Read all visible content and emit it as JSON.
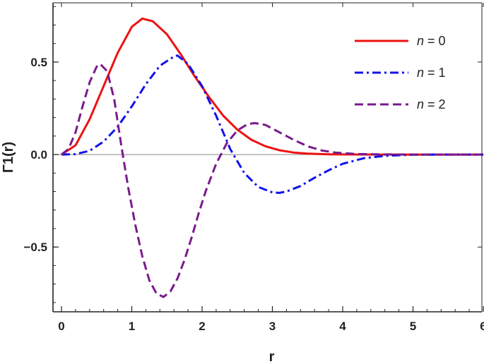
{
  "chart_data": {
    "type": "line",
    "title": "",
    "xlabel": "r",
    "ylabel": "Γ1(r)",
    "xlim": [
      0,
      6
    ],
    "ylim": [
      -0.85,
      0.82
    ],
    "xticks": [
      0,
      1,
      2,
      3,
      4,
      5,
      6
    ],
    "xtick_labels": [
      "0",
      "1",
      "2",
      "3",
      "4",
      "5",
      "6"
    ],
    "yticks": [
      -0.5,
      0.0,
      0.5
    ],
    "ytick_labels": [
      "−0.5",
      "0.0",
      "0.5"
    ],
    "grid": false,
    "zero_line": true,
    "legend_position": "top-right",
    "series": [
      {
        "name": "n = 0",
        "color": "#ee1111",
        "dash": "solid",
        "x": [
          0,
          0.2,
          0.4,
          0.6,
          0.8,
          1.0,
          1.15,
          1.3,
          1.5,
          1.7,
          1.9,
          2.1,
          2.3,
          2.5,
          2.7,
          2.9,
          3.1,
          3.3,
          3.5,
          3.8,
          4.1,
          4.5,
          5.0,
          5.5,
          6.0
        ],
        "y": [
          0,
          0.05,
          0.19,
          0.37,
          0.55,
          0.69,
          0.735,
          0.72,
          0.65,
          0.54,
          0.42,
          0.31,
          0.21,
          0.135,
          0.08,
          0.045,
          0.023,
          0.011,
          0.005,
          0.0015,
          0.0004,
          5e-05,
          0,
          0,
          0
        ]
      },
      {
        "name": "n = 1",
        "color": "#1111ee",
        "dash": "dash-dot",
        "x": [
          0,
          0.2,
          0.4,
          0.6,
          0.8,
          1.0,
          1.2,
          1.4,
          1.6,
          1.65,
          1.8,
          2.0,
          2.2,
          2.4,
          2.6,
          2.8,
          3.0,
          3.1,
          3.2,
          3.4,
          3.6,
          3.8,
          4.0,
          4.3,
          4.6,
          5.0,
          5.5,
          6.0
        ],
        "y": [
          0,
          0.002,
          0.02,
          0.07,
          0.15,
          0.26,
          0.38,
          0.48,
          0.53,
          0.535,
          0.49,
          0.37,
          0.21,
          0.03,
          -0.1,
          -0.175,
          -0.205,
          -0.207,
          -0.2,
          -0.17,
          -0.125,
          -0.085,
          -0.05,
          -0.02,
          -0.007,
          -0.001,
          0,
          0
        ]
      },
      {
        "name": "n = 2",
        "color": "#7a1a8c",
        "dash": "dashed",
        "x": [
          0,
          0.1,
          0.2,
          0.3,
          0.4,
          0.5,
          0.55,
          0.65,
          0.75,
          0.85,
          0.95,
          1.05,
          1.15,
          1.25,
          1.35,
          1.45,
          1.55,
          1.65,
          1.75,
          1.85,
          1.95,
          2.05,
          2.2,
          2.35,
          2.5,
          2.65,
          2.75,
          2.9,
          3.1,
          3.3,
          3.5,
          3.7,
          3.9,
          4.2,
          4.5,
          5.0,
          5.5,
          6.0
        ],
        "y": [
          0,
          0.03,
          0.12,
          0.26,
          0.39,
          0.475,
          0.49,
          0.45,
          0.3,
          0.05,
          -0.18,
          -0.38,
          -0.55,
          -0.68,
          -0.75,
          -0.77,
          -0.74,
          -0.67,
          -0.57,
          -0.45,
          -0.32,
          -0.2,
          -0.05,
          0.06,
          0.13,
          0.165,
          0.17,
          0.16,
          0.12,
          0.08,
          0.045,
          0.022,
          0.01,
          0.003,
          0.001,
          0,
          0,
          0
        ]
      }
    ]
  }
}
